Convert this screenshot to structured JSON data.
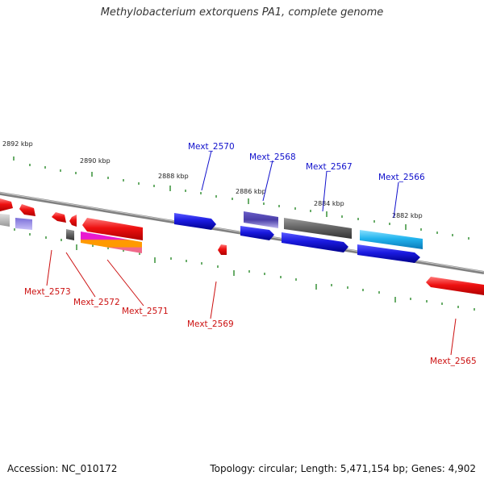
{
  "title": "Methylobacterium extorquens PA1, complete genome",
  "footer": {
    "accession": "Accession: NC_010172",
    "topology": "Topology: circular; Length: 5,471,154 bp; Genes: 4,902"
  },
  "colors": {
    "backbone": "#888888",
    "tick": "#2a8a2a",
    "label_forward": "#1010cc",
    "label_reverse": "#cc1010",
    "gene_red": "#ee1111",
    "gene_blue": "#1a1ae0",
    "gene_purple": "#4a3ea8",
    "gene_gray": "#666666",
    "gene_cyan": "#22b4ee"
  },
  "kbp_labels": [
    "2892 kbp",
    "2890 kbp",
    "2888 kbp",
    "2886 kbp",
    "2884 kbp",
    "2882 kbp"
  ],
  "gene_labels": {
    "forward": [
      "Mext_2570",
      "Mext_2568",
      "Mext_2567",
      "Mext_2566"
    ],
    "reverse": [
      "Mext_2573",
      "Mext_2572",
      "Mext_2571",
      "Mext_2569",
      "Mext_2565"
    ]
  }
}
